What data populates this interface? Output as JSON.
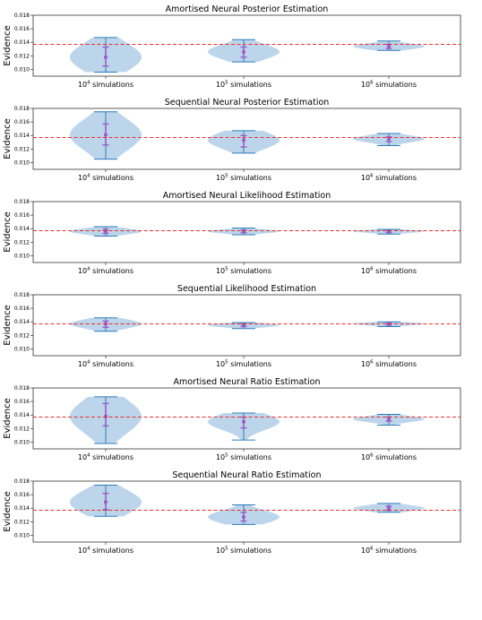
{
  "chart_data": [
    {
      "type": "violin",
      "title": "Amortised Neural Posterior Estimation",
      "ylabel": "Evidence",
      "categories": [
        "10⁴ simulations",
        "10⁵ simulations",
        "10⁶ simulations"
      ],
      "ylim": [
        0.009,
        0.018
      ],
      "yticks": [
        "0.010",
        "0.012",
        "0.014",
        "0.016",
        "0.018"
      ],
      "reference_line": 0.0137,
      "violins": [
        {
          "min": 0.0096,
          "max": 0.0147,
          "q1": 0.0105,
          "median": 0.0118,
          "q3": 0.0133
        },
        {
          "min": 0.0111,
          "max": 0.0144,
          "q1": 0.0118,
          "median": 0.0126,
          "q3": 0.0133
        },
        {
          "min": 0.0128,
          "max": 0.0142,
          "q1": 0.0131,
          "median": 0.0134,
          "q3": 0.0137
        }
      ]
    },
    {
      "type": "violin",
      "title": "Sequential Neural Posterior Estimation",
      "ylabel": "Evidence",
      "categories": [
        "10⁴ simulations",
        "10⁵ simulations",
        "10⁶ simulations"
      ],
      "ylim": [
        0.009,
        0.018
      ],
      "yticks": [
        "0.010",
        "0.012",
        "0.014",
        "0.016",
        "0.018"
      ],
      "reference_line": 0.0137,
      "violins": [
        {
          "min": 0.0105,
          "max": 0.0175,
          "q1": 0.0126,
          "median": 0.0141,
          "q3": 0.0157
        },
        {
          "min": 0.0114,
          "max": 0.0147,
          "q1": 0.0123,
          "median": 0.0133,
          "q3": 0.014
        },
        {
          "min": 0.0125,
          "max": 0.0143,
          "q1": 0.0131,
          "median": 0.0135,
          "q3": 0.0138
        }
      ]
    },
    {
      "type": "violin",
      "title": "Amortised Neural Likelihood Estimation",
      "ylabel": "Evidence",
      "categories": [
        "10⁴ simulations",
        "10⁵ simulations",
        "10⁶ simulations"
      ],
      "ylim": [
        0.009,
        0.018
      ],
      "yticks": [
        "0.010",
        "0.012",
        "0.014",
        "0.016",
        "0.018"
      ],
      "reference_line": 0.0137,
      "violins": [
        {
          "min": 0.0129,
          "max": 0.0143,
          "q1": 0.0133,
          "median": 0.0136,
          "q3": 0.0139
        },
        {
          "min": 0.0131,
          "max": 0.0141,
          "q1": 0.0134,
          "median": 0.0136,
          "q3": 0.0138
        },
        {
          "min": 0.0132,
          "max": 0.0139,
          "q1": 0.0134,
          "median": 0.0136,
          "q3": 0.0137
        }
      ]
    },
    {
      "type": "violin",
      "title": "Sequential Likelihood Estimation",
      "ylabel": "Evidence",
      "categories": [
        "10⁴ simulations",
        "10⁵ simulations",
        "10⁶ simulations"
      ],
      "ylim": [
        0.009,
        0.018
      ],
      "yticks": [
        "0.010",
        "0.012",
        "0.014",
        "0.016",
        "0.018"
      ],
      "reference_line": 0.0137,
      "violins": [
        {
          "min": 0.0126,
          "max": 0.0146,
          "q1": 0.0132,
          "median": 0.0137,
          "q3": 0.0141
        },
        {
          "min": 0.013,
          "max": 0.0139,
          "q1": 0.0133,
          "median": 0.0135,
          "q3": 0.0137
        },
        {
          "min": 0.0133,
          "max": 0.014,
          "q1": 0.0135,
          "median": 0.0137,
          "q3": 0.0138
        }
      ]
    },
    {
      "type": "violin",
      "title": "Amortised Neural Ratio Estimation",
      "ylabel": "Evidence",
      "categories": [
        "10⁴ simulations",
        "10⁵ simulations",
        "10⁶ simulations"
      ],
      "ylim": [
        0.009,
        0.018
      ],
      "yticks": [
        "0.010",
        "0.012",
        "0.014",
        "0.016",
        "0.018"
      ],
      "reference_line": 0.0137,
      "violins": [
        {
          "min": 0.0098,
          "max": 0.0167,
          "q1": 0.0124,
          "median": 0.0138,
          "q3": 0.0157
        },
        {
          "min": 0.0103,
          "max": 0.0143,
          "q1": 0.0121,
          "median": 0.013,
          "q3": 0.0137
        },
        {
          "min": 0.0125,
          "max": 0.0141,
          "q1": 0.0131,
          "median": 0.0134,
          "q3": 0.0137
        }
      ]
    },
    {
      "type": "violin",
      "title": "Sequential Neural Ratio Estimation",
      "ylabel": "Evidence",
      "categories": [
        "10⁴ simulations",
        "10⁵ simulations",
        "10⁶ simulations"
      ],
      "ylim": [
        0.009,
        0.018
      ],
      "yticks": [
        "0.010",
        "0.012",
        "0.014",
        "0.016",
        "0.018"
      ],
      "reference_line": 0.0137,
      "violins": [
        {
          "min": 0.0128,
          "max": 0.0174,
          "q1": 0.0138,
          "median": 0.0149,
          "q3": 0.0162
        },
        {
          "min": 0.0116,
          "max": 0.0145,
          "q1": 0.0121,
          "median": 0.0127,
          "q3": 0.0134
        },
        {
          "min": 0.0134,
          "max": 0.0147,
          "q1": 0.0137,
          "median": 0.014,
          "q3": 0.0143
        }
      ]
    }
  ],
  "colors": {
    "violin_fill": "#b9d3ea",
    "whisker": "#2f7db8",
    "marker": "#9a5cc6",
    "reference": "#e8312f",
    "axes": "#333333"
  }
}
